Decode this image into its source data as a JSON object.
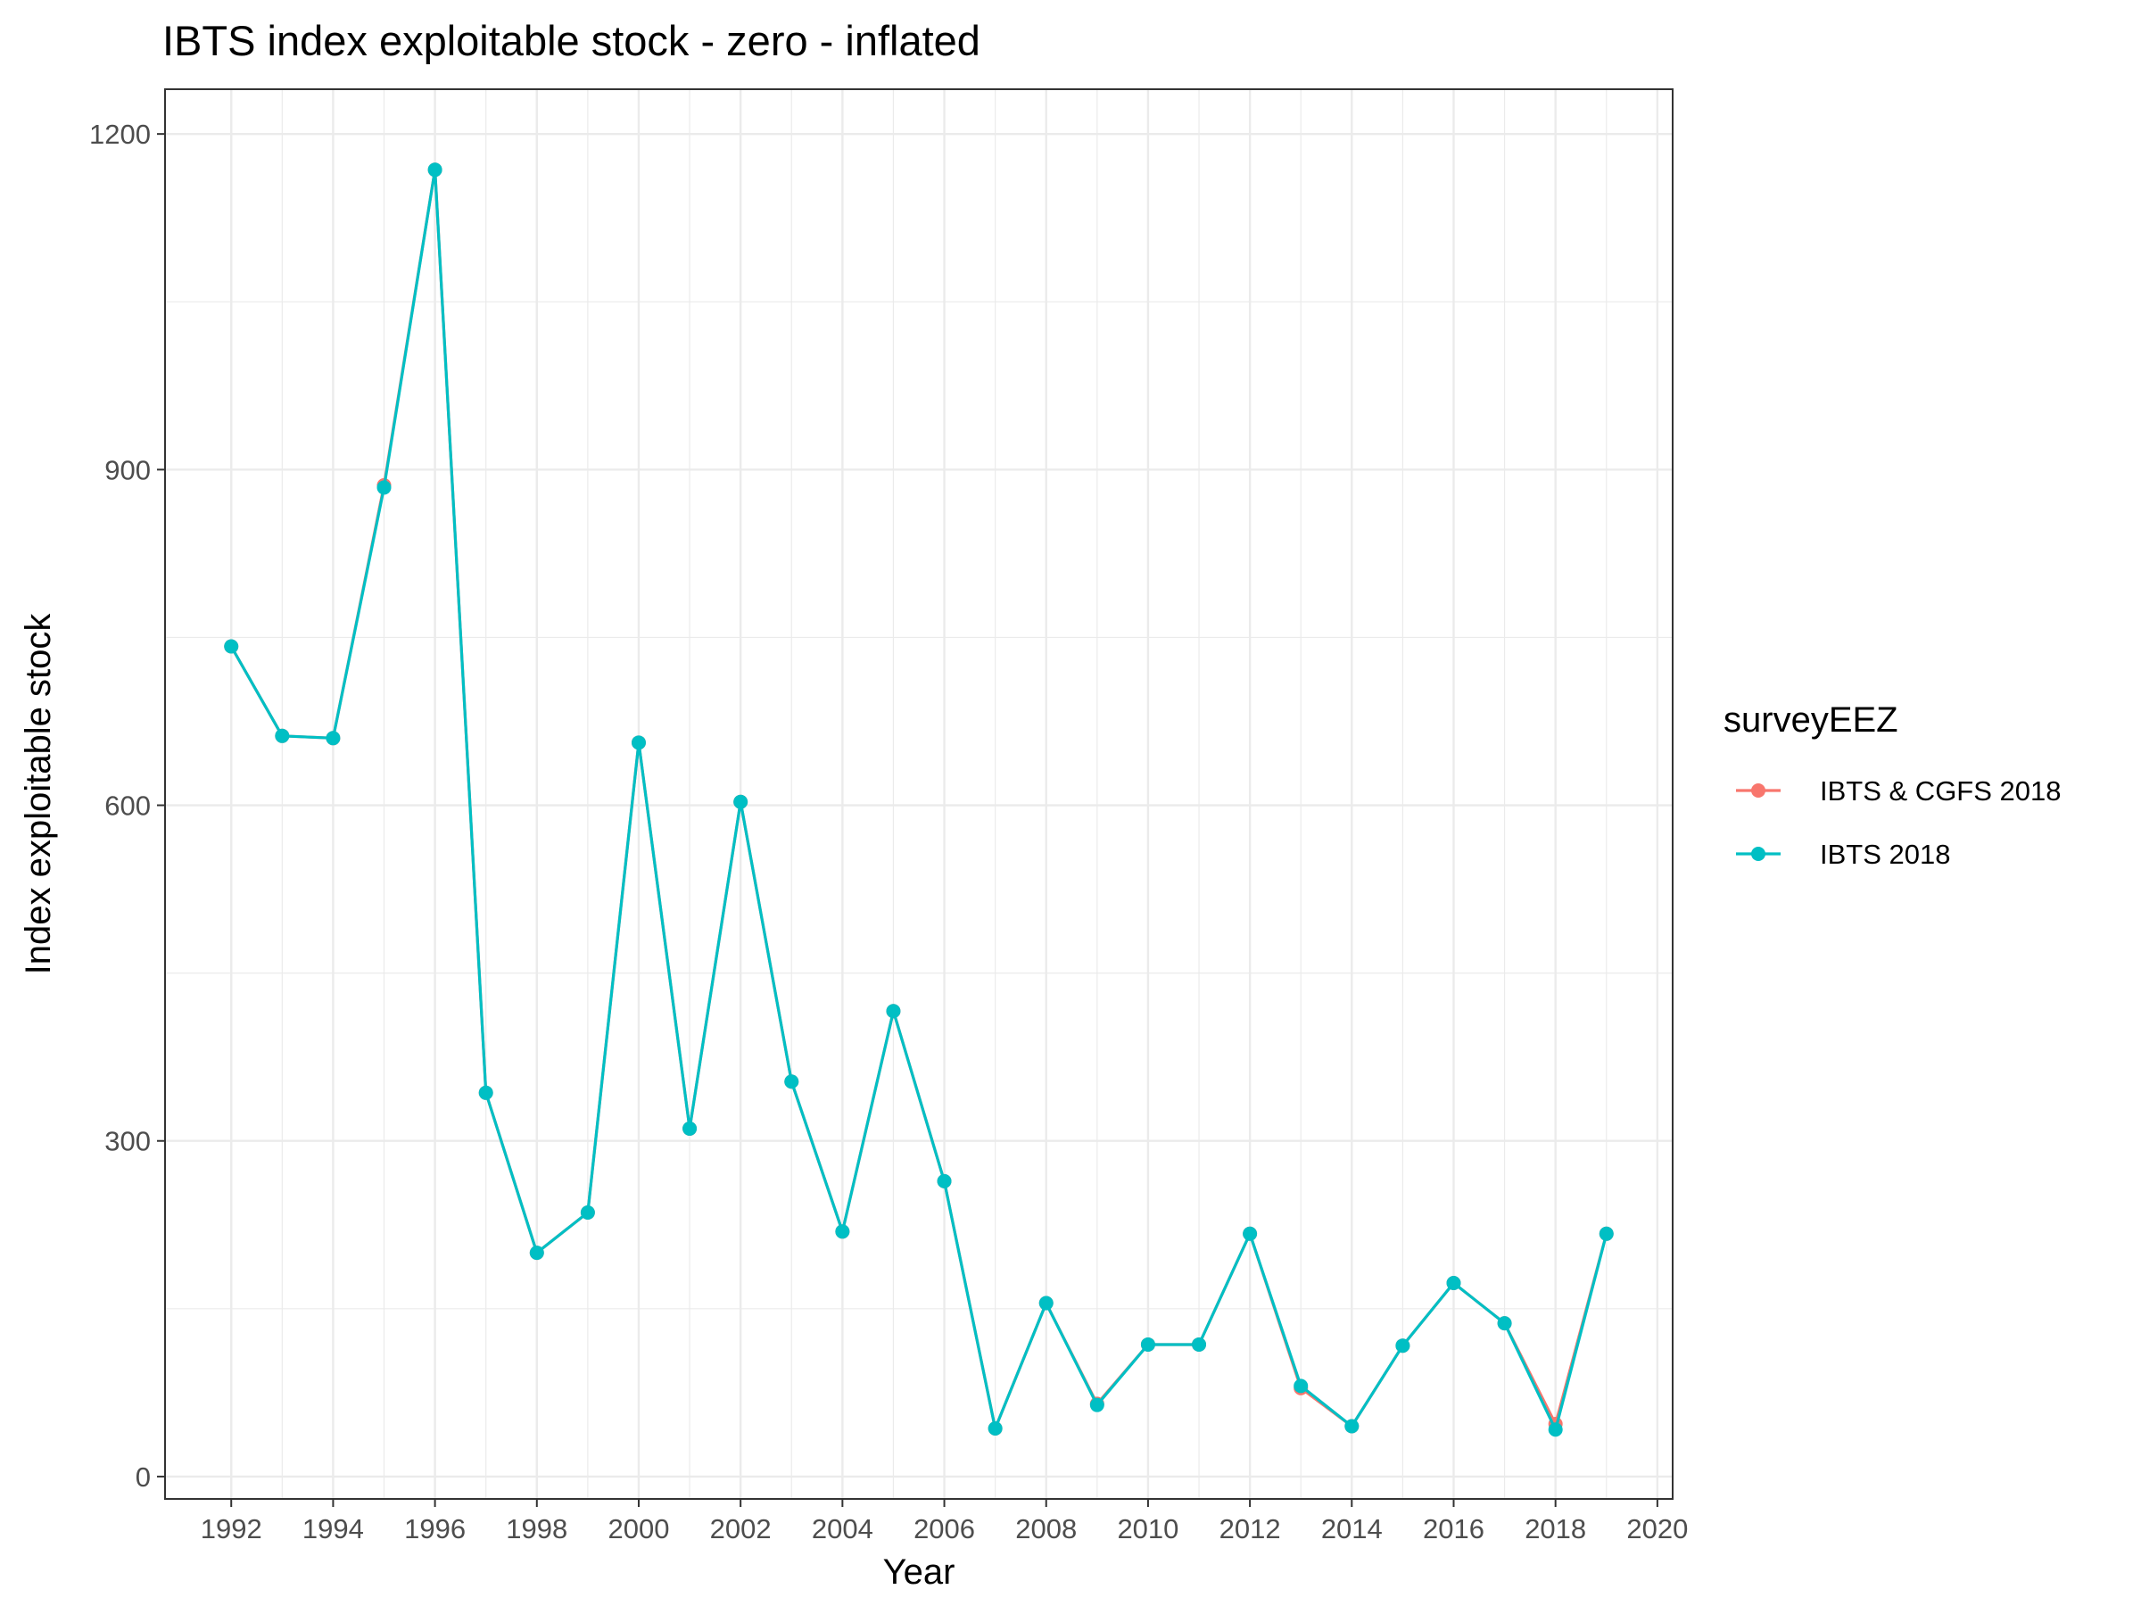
{
  "chart_data": {
    "type": "line",
    "title": "IBTS index exploitable stock - zero - inflated",
    "xlabel": "Year",
    "ylabel": "Index exploitable stock",
    "xlim": [
      1990.7,
      2020.3
    ],
    "ylim": [
      -20,
      1240
    ],
    "x_ticks": [
      1992,
      1994,
      1996,
      1998,
      2000,
      2002,
      2004,
      2006,
      2008,
      2010,
      2012,
      2014,
      2016,
      2018,
      2020
    ],
    "y_ticks": [
      0,
      300,
      600,
      900,
      1200
    ],
    "grid": true,
    "legend": {
      "title": "surveyEEZ",
      "position": "right"
    },
    "series": [
      {
        "name": "IBTS & CGFS 2018",
        "color": "#F8766D",
        "x": [
          1992,
          1993,
          1994,
          1995,
          1996,
          1997,
          1998,
          1999,
          2000,
          2001,
          2002,
          2003,
          2004,
          2005,
          2006,
          2007,
          2008,
          2009,
          2010,
          2011,
          2012,
          2013,
          2014,
          2015,
          2016,
          2017,
          2018,
          2019
        ],
        "y": [
          742,
          662,
          660,
          886,
          1168,
          343,
          200,
          236,
          656,
          311,
          603,
          353,
          219,
          416,
          264,
          43,
          155,
          65,
          118,
          118,
          217,
          79,
          45,
          117,
          173,
          137,
          47,
          217
        ]
      },
      {
        "name": "IBTS 2018",
        "color": "#00BFC4",
        "x": [
          1992,
          1993,
          1994,
          1995,
          1996,
          1997,
          1998,
          1999,
          2000,
          2001,
          2002,
          2003,
          2004,
          2005,
          2006,
          2007,
          2008,
          2009,
          2010,
          2011,
          2012,
          2013,
          2014,
          2015,
          2016,
          2017,
          2018,
          2019
        ],
        "y": [
          742,
          662,
          660,
          884,
          1168,
          343,
          200,
          236,
          656,
          311,
          603,
          353,
          219,
          416,
          264,
          43,
          155,
          64,
          118,
          118,
          217,
          81,
          45,
          117,
          173,
          137,
          42,
          217
        ]
      }
    ]
  }
}
